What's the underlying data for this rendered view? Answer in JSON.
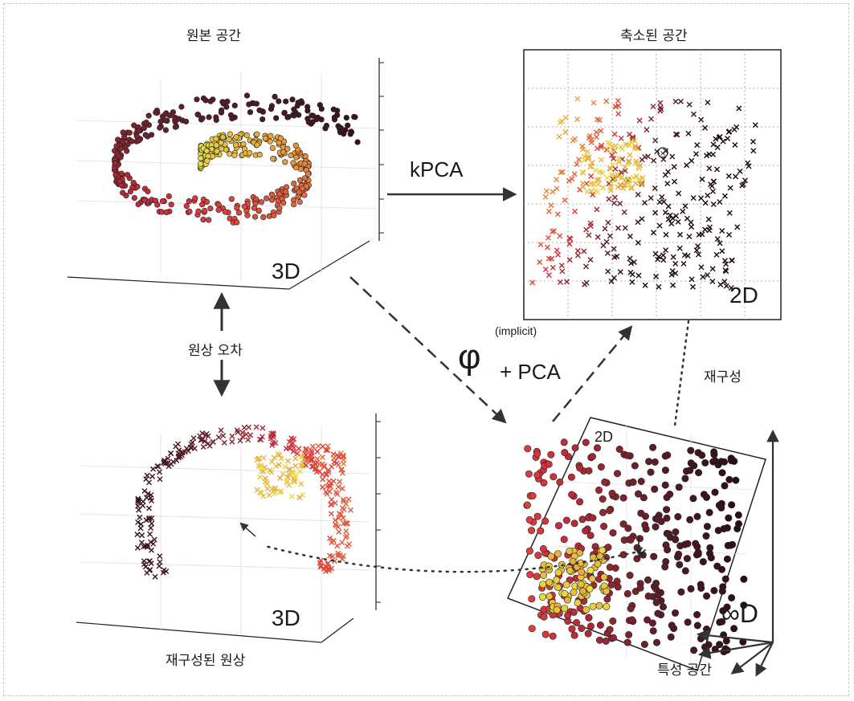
{
  "panels": {
    "original": {
      "title": "원본 공간",
      "dim_label": "3D"
    },
    "reduced": {
      "title": "축소된 공간",
      "dim_label": "2D"
    },
    "preimage": {
      "title": "재구성된 원상",
      "dim_label": "3D"
    },
    "feature": {
      "title": "특성 공간",
      "dim_label": "∞D",
      "plane_label": "2D"
    }
  },
  "arrows": {
    "kpca": "kPCA",
    "phi": "φ",
    "implicit": "(implicit)",
    "plus_pca": "+ PCA",
    "reconstruction": "재구성",
    "preimage_error": "원상 오차"
  },
  "colors": {
    "dark": "#1a0a0d",
    "maroon": "#5a1e28",
    "red": "#d8303c",
    "orange": "#e88a3a",
    "yellow": "#e8e040",
    "olive": "#b0a830",
    "arrow": "#333333"
  }
}
